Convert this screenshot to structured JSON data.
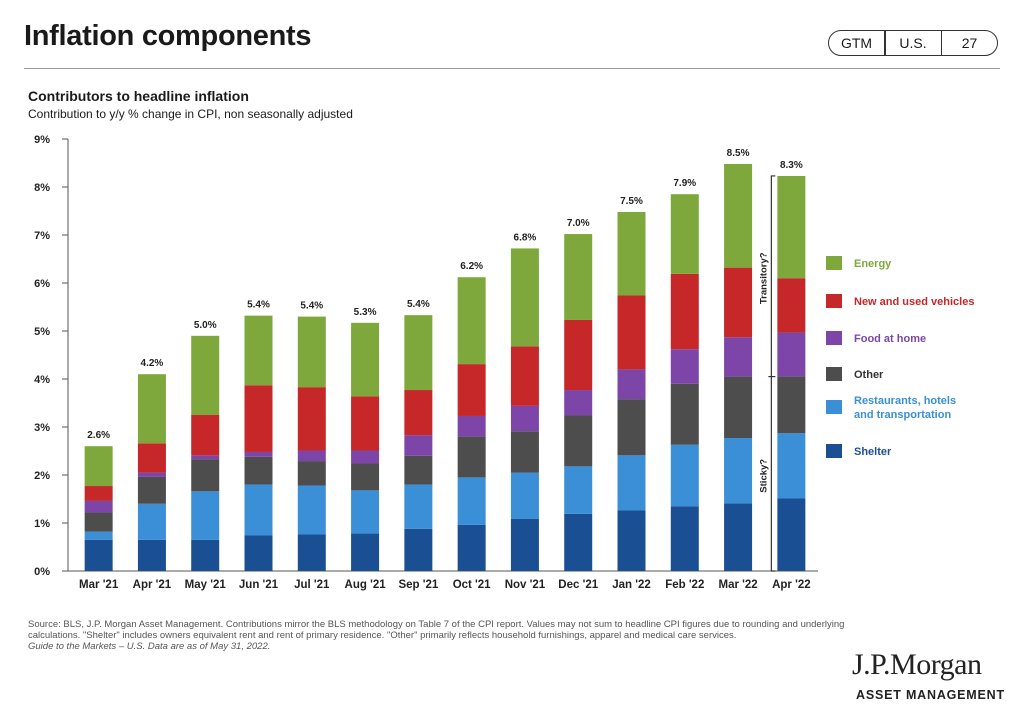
{
  "header": {
    "title": "Inflation components",
    "badge": [
      "GTM",
      "U.S.",
      "27"
    ]
  },
  "chart_data": {
    "type": "bar",
    "stacked": true,
    "title": "Contributors to headline inflation",
    "subtitle": "Contribution to y/y % change in CPI, non seasonally adjusted",
    "ylim": [
      0,
      9
    ],
    "yticks": [
      "0%",
      "1%",
      "2%",
      "3%",
      "4%",
      "5%",
      "6%",
      "7%",
      "8%",
      "9%"
    ],
    "categories": [
      "Mar '21",
      "Apr '21",
      "May '21",
      "Jun '21",
      "Jul '21",
      "Aug '21",
      "Sep '21",
      "Oct '21",
      "Nov '21",
      "Dec '21",
      "Jan '22",
      "Feb '22",
      "Mar '22",
      "Apr '22"
    ],
    "totals": [
      "2.6%",
      "4.2%",
      "5.0%",
      "5.4%",
      "5.4%",
      "5.3%",
      "5.4%",
      "6.2%",
      "6.8%",
      "7.0%",
      "7.5%",
      "7.9%",
      "8.5%",
      "8.3%"
    ],
    "series": [
      {
        "name": "Shelter",
        "color": "#1b4f93",
        "values": [
          0.65,
          0.65,
          0.65,
          0.74,
          0.76,
          0.78,
          0.88,
          0.96,
          1.09,
          1.19,
          1.26,
          1.35,
          1.41,
          1.51
        ]
      },
      {
        "name": "Restaurants, hotels and transportation",
        "color": "#3a8fd6",
        "values": [
          0.17,
          0.75,
          1.01,
          1.06,
          1.02,
          0.9,
          0.92,
          0.99,
          0.96,
          0.99,
          1.15,
          1.28,
          1.36,
          1.36
        ]
      },
      {
        "name": "Other",
        "color": "#4d4d4d",
        "values": [
          0.4,
          0.56,
          0.67,
          0.58,
          0.51,
          0.56,
          0.6,
          0.85,
          0.86,
          1.06,
          1.17,
          1.27,
          1.28,
          1.18
        ]
      },
      {
        "name": "Food at home",
        "color": "#7d45a8",
        "values": [
          0.24,
          0.09,
          0.08,
          0.1,
          0.22,
          0.27,
          0.43,
          0.43,
          0.53,
          0.53,
          0.62,
          0.72,
          0.82,
          0.92
        ]
      },
      {
        "name": "New and used vehicles",
        "color": "#c62728",
        "values": [
          0.31,
          0.61,
          0.84,
          1.39,
          1.32,
          1.13,
          0.94,
          1.08,
          1.24,
          1.46,
          1.54,
          1.57,
          1.45,
          1.13
        ]
      },
      {
        "name": "Energy",
        "color": "#7ea83c",
        "values": [
          0.83,
          1.44,
          1.65,
          1.45,
          1.47,
          1.53,
          1.56,
          1.81,
          2.04,
          1.79,
          1.74,
          1.66,
          2.16,
          2.13
        ]
      }
    ],
    "legend": [
      "Energy",
      "New and used vehicles",
      "Food at home",
      "Other",
      "Restaurants, hotels and transportation",
      "Shelter"
    ],
    "legend_position": "right",
    "annotations": [
      "Transitory?",
      "Sticky?"
    ]
  },
  "footer": {
    "source": "Source: BLS, J.P. Morgan Asset Management. Contributions mirror the BLS methodology on Table 7 of the CPI report. Values may not sum to headline CPI figures due to rounding and underlying calculations. \"Shelter\" includes owners equivalent rent and rent of primary residence. \"Other\" primarily reflects household furnishings, apparel and medical care services.",
    "guide": "Guide to the Markets – U.S. Data are as of May 31, 2022."
  },
  "brand": {
    "logo": "J.P.Morgan",
    "sub": "ASSET MANAGEMENT"
  }
}
